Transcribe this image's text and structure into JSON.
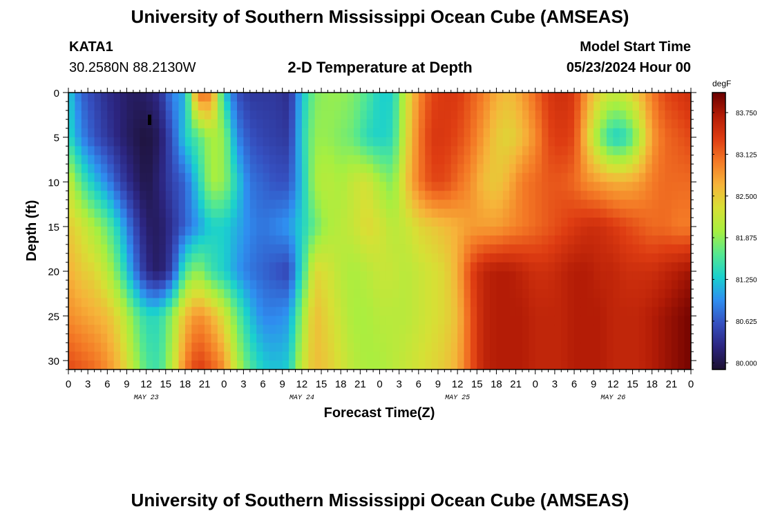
{
  "header": {
    "title": "University of Southern Mississippi Ocean Cube (AMSEAS)",
    "station_id": "KATA1",
    "coordinates": "30.2580N  88.2130W",
    "subtitle": "2-D Temperature at Depth",
    "model_start_label": "Model Start Time",
    "model_start_value": "05/23/2024 Hour 00"
  },
  "footer": {
    "title": "University of Southern Mississippi Ocean Cube (AMSEAS)"
  },
  "chart_data": {
    "type": "heatmap",
    "title": "2-D Temperature at Depth",
    "xlabel": "Forecast Time(Z)",
    "ylabel": "Depth (ft)",
    "x_unit": "hours from model start",
    "xlim": [
      0,
      96
    ],
    "ylim": [
      0,
      31
    ],
    "y_inverted": true,
    "x_tick_values": [
      0,
      3,
      6,
      9,
      12,
      15,
      18,
      21,
      24,
      27,
      30,
      33,
      36,
      39,
      42,
      45,
      48,
      51,
      54,
      57,
      60,
      63,
      66,
      69,
      72,
      75,
      78,
      81,
      84,
      87,
      90,
      93,
      96
    ],
    "x_tick_labels": [
      "0",
      "3",
      "6",
      "9",
      "12",
      "15",
      "18",
      "21",
      "0",
      "3",
      "6",
      "9",
      "12",
      "15",
      "18",
      "21",
      "0",
      "3",
      "6",
      "9",
      "12",
      "15",
      "18",
      "21",
      "0",
      "3",
      "6",
      "9",
      "12",
      "15",
      "18",
      "21",
      "0"
    ],
    "day_labels": [
      {
        "x": 12,
        "text": "MAY 23"
      },
      {
        "x": 36,
        "text": "MAY 24"
      },
      {
        "x": 60,
        "text": "MAY 25"
      },
      {
        "x": 84,
        "text": "MAY 26"
      }
    ],
    "y_tick_values": [
      0,
      5,
      10,
      15,
      20,
      25,
      30
    ],
    "y_tick_labels": [
      "0",
      "5",
      "10",
      "15",
      "20",
      "25",
      "30"
    ],
    "colorbar": {
      "unit": "degF",
      "min": 79.9,
      "max": 84.05,
      "tick_values": [
        80.0,
        80.625,
        81.25,
        81.875,
        82.5,
        83.125,
        83.75
      ],
      "tick_labels": [
        "80.000",
        "80.625",
        "81.250",
        "81.875",
        "82.500",
        "83.125",
        "83.750"
      ],
      "stops": [
        "#1c1030",
        "#2c2580",
        "#3550c0",
        "#2f8ef0",
        "#1ad0ce",
        "#55e890",
        "#a7ef40",
        "#d7e035",
        "#f6b43a",
        "#f47a26",
        "#de3c12",
        "#b31c06",
        "#6a0000"
      ]
    },
    "time_grid": [
      0,
      2,
      4,
      6,
      8,
      10,
      12,
      14,
      16,
      18,
      20,
      22,
      24,
      26,
      28,
      30,
      32,
      34,
      36,
      38,
      40,
      42,
      44,
      46,
      48,
      50,
      52,
      54,
      56,
      58,
      60,
      62,
      64,
      66,
      68,
      70,
      72,
      74,
      76,
      78,
      80,
      82,
      84,
      86,
      88,
      90,
      92,
      94,
      96
    ],
    "depth_grid": [
      0,
      5,
      10,
      15,
      20,
      25,
      31
    ],
    "temperature": [
      [
        81.3,
        80.7,
        80.5,
        80.3,
        80.2,
        80.1,
        80.15,
        80.3,
        80.9,
        81.1,
        83.1,
        83.0,
        81.3,
        80.6,
        80.4,
        80.4,
        80.4,
        80.3,
        81.2,
        81.8,
        81.9,
        81.9,
        81.8,
        81.6,
        81.3,
        81.3,
        82.2,
        82.9,
        83.3,
        83.4,
        83.4,
        83.2,
        83.0,
        82.7,
        82.6,
        82.8,
        83.1,
        83.4,
        83.5,
        83.4,
        82.8,
        82.4,
        82.2,
        82.3,
        82.6,
        83.0,
        83.3,
        83.4,
        83.5
      ],
      [
        81.4,
        80.9,
        80.6,
        80.4,
        80.2,
        80.05,
        79.95,
        80.1,
        80.6,
        81.3,
        81.6,
        82.0,
        81.9,
        80.9,
        80.6,
        80.5,
        80.45,
        80.4,
        81.3,
        81.9,
        81.9,
        81.8,
        81.7,
        81.4,
        81.3,
        81.4,
        82.3,
        83.0,
        83.4,
        83.4,
        83.3,
        83.1,
        82.8,
        82.5,
        82.4,
        82.6,
        82.9,
        83.3,
        83.4,
        83.3,
        82.5,
        81.8,
        81.3,
        81.4,
        82.0,
        82.8,
        83.1,
        83.2,
        83.3
      ],
      [
        82.2,
        81.6,
        81.2,
        80.9,
        80.5,
        80.2,
        80.0,
        80.2,
        80.5,
        80.7,
        81.3,
        82.0,
        81.9,
        81.3,
        80.8,
        80.7,
        80.6,
        80.6,
        81.2,
        82.0,
        82.1,
        82.0,
        82.2,
        82.3,
        82.0,
        81.8,
        82.5,
        83.0,
        83.3,
        83.3,
        83.1,
        82.9,
        82.6,
        82.5,
        82.7,
        83.0,
        83.1,
        83.2,
        83.2,
        83.1,
        82.9,
        82.8,
        82.7,
        82.7,
        82.8,
        83.0,
        83.1,
        83.1,
        83.1
      ],
      [
        82.5,
        82.3,
        82.0,
        81.7,
        81.2,
        80.6,
        80.15,
        80.1,
        80.35,
        80.7,
        81.0,
        81.3,
        81.3,
        81.1,
        80.9,
        80.8,
        80.9,
        81.0,
        81.3,
        81.7,
        82.0,
        82.1,
        82.2,
        82.4,
        82.3,
        82.1,
        82.2,
        82.4,
        82.5,
        82.6,
        82.7,
        82.8,
        82.8,
        82.8,
        82.9,
        83.0,
        83.1,
        83.2,
        83.3,
        83.4,
        83.5,
        83.5,
        83.4,
        83.3,
        83.2,
        83.1,
        83.1,
        83.0,
        83.0
      ],
      [
        82.7,
        82.5,
        82.4,
        82.1,
        81.6,
        80.9,
        80.3,
        80.1,
        80.5,
        81.6,
        81.9,
        81.5,
        81.3,
        81.0,
        80.8,
        80.7,
        80.6,
        80.5,
        81.4,
        82.4,
        82.3,
        82.1,
        82.0,
        82.1,
        82.2,
        82.2,
        82.1,
        82.2,
        82.3,
        82.4,
        82.7,
        83.3,
        83.6,
        83.7,
        83.7,
        83.6,
        83.5,
        83.5,
        83.6,
        83.7,
        83.7,
        83.6,
        83.6,
        83.5,
        83.5,
        83.5,
        83.6,
        83.7,
        83.8
      ],
      [
        82.9,
        82.8,
        82.7,
        82.6,
        82.3,
        81.8,
        81.4,
        81.4,
        81.9,
        82.6,
        82.9,
        82.7,
        82.3,
        81.7,
        81.2,
        80.9,
        80.9,
        81.0,
        81.9,
        82.6,
        82.4,
        82.2,
        82.0,
        82.0,
        82.1,
        82.1,
        82.1,
        82.2,
        82.3,
        82.4,
        82.6,
        83.2,
        83.6,
        83.7,
        83.7,
        83.7,
        83.6,
        83.6,
        83.6,
        83.7,
        83.7,
        83.7,
        83.6,
        83.6,
        83.6,
        83.7,
        83.8,
        83.9,
        84.0
      ],
      [
        83.3,
        83.2,
        83.1,
        82.9,
        82.6,
        82.1,
        81.6,
        81.5,
        82.1,
        83.0,
        83.4,
        83.2,
        82.9,
        82.1,
        81.6,
        81.3,
        81.2,
        81.3,
        82.2,
        82.6,
        82.5,
        82.3,
        82.1,
        82.0,
        82.0,
        82.1,
        82.2,
        82.3,
        82.4,
        82.5,
        82.7,
        83.2,
        83.6,
        83.7,
        83.7,
        83.7,
        83.6,
        83.6,
        83.6,
        83.7,
        83.7,
        83.7,
        83.6,
        83.6,
        83.6,
        83.7,
        83.8,
        83.9,
        84.0
      ]
    ]
  }
}
